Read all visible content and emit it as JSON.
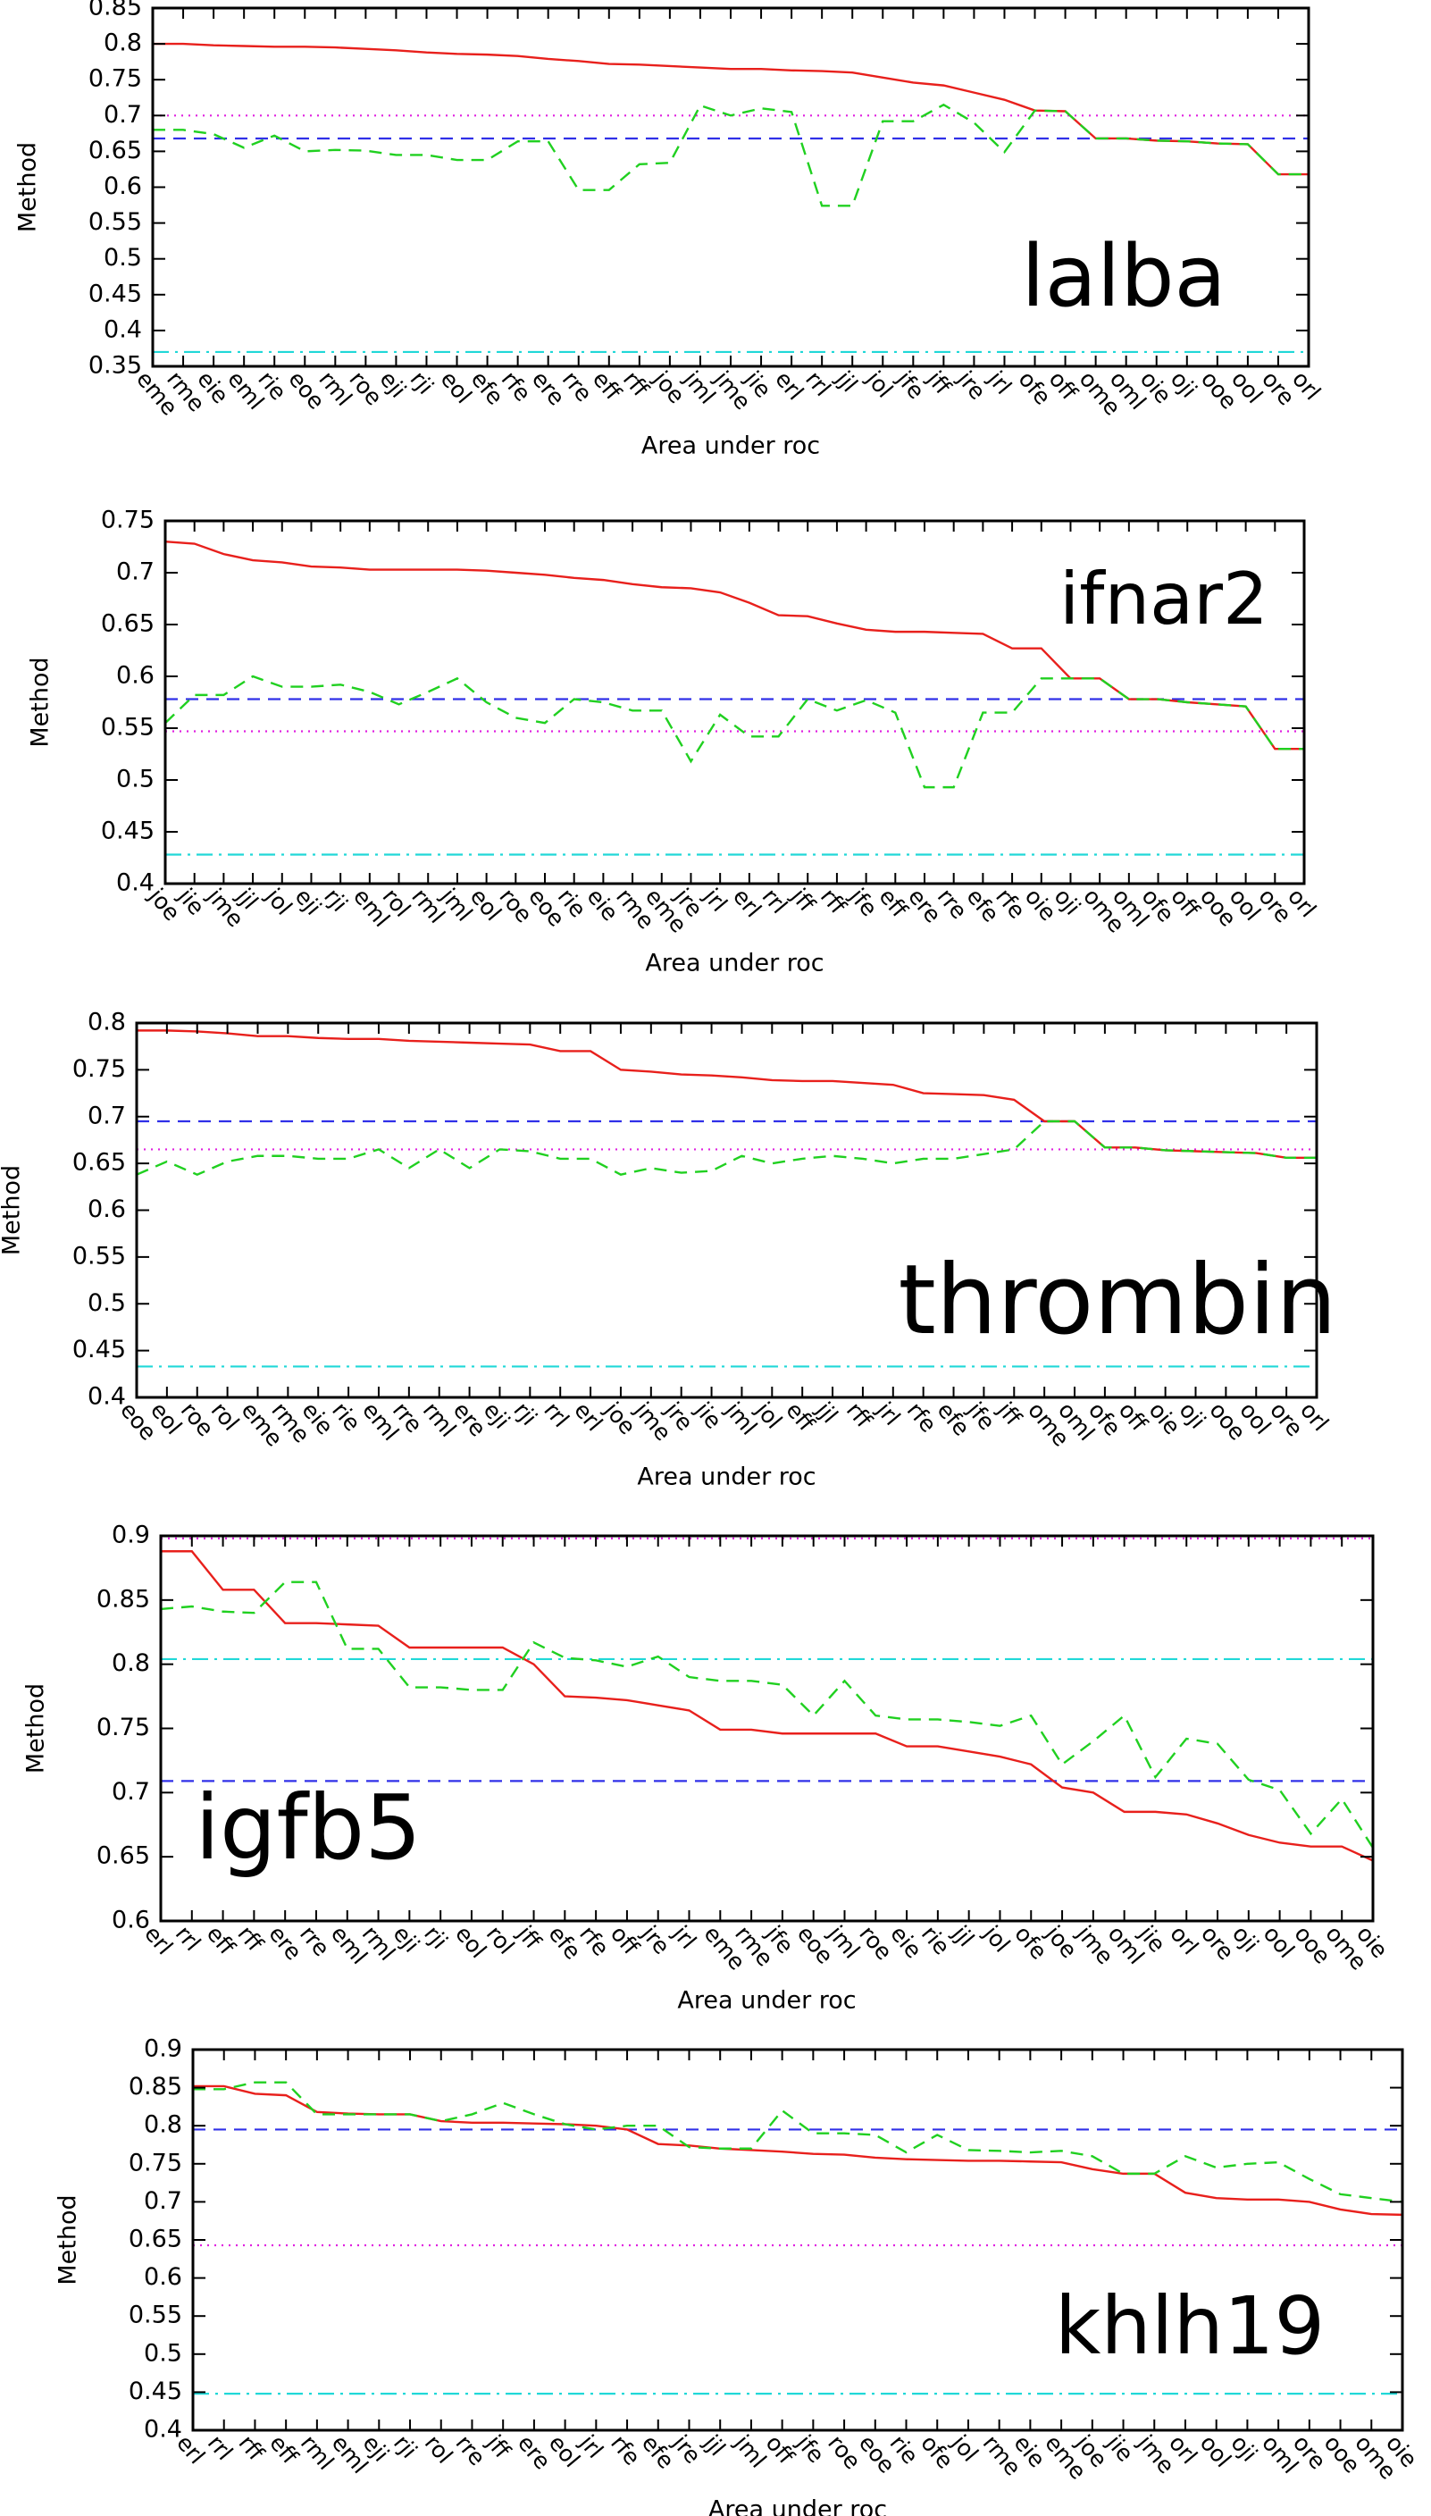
{
  "chart_data": [
    {
      "type": "line",
      "annotation": "lalba",
      "x_label": "Area under roc",
      "y_label": "Method",
      "ylim": [
        0.35,
        0.85
      ],
      "yticks": [
        0.35,
        0.4,
        0.45,
        0.5,
        0.55,
        0.6,
        0.65,
        0.7,
        0.75,
        0.8,
        0.85
      ],
      "grid": false,
      "categories": [
        "eme",
        "rme",
        "eie",
        "eml",
        "rie",
        "eoe",
        "rml",
        "roe",
        "eji",
        "rji",
        "eol",
        "efe",
        "rfe",
        "ere",
        "rre",
        "eff",
        "rff",
        "joe",
        "jml",
        "jme",
        "jie",
        "erl",
        "rrl",
        "jjl",
        "jol",
        "jfe",
        "jff",
        "jre",
        "jrl",
        "ofe",
        "off",
        "ome",
        "oml",
        "oie",
        "oji",
        "ooe",
        "ool",
        "ore",
        "orl"
      ],
      "series": [
        {
          "color": "#e8201c",
          "dash": "solid",
          "values": [
            0.8,
            0.8,
            0.798,
            0.797,
            0.796,
            0.796,
            0.795,
            0.793,
            0.791,
            0.788,
            0.786,
            0.785,
            0.783,
            0.779,
            0.776,
            0.772,
            0.771,
            0.769,
            0.767,
            0.765,
            0.765,
            0.763,
            0.762,
            0.76,
            0.753,
            0.746,
            0.742,
            0.732,
            0.722,
            0.707,
            0.706,
            0.668,
            0.668,
            0.665,
            0.664,
            0.661,
            0.66,
            0.618,
            0.618
          ]
        },
        {
          "color": "#20d020",
          "dash": "dashed",
          "values": [
            0.68,
            0.68,
            0.674,
            0.655,
            0.672,
            0.65,
            0.652,
            0.651,
            0.645,
            0.645,
            0.638,
            0.638,
            0.664,
            0.664,
            0.596,
            0.596,
            0.632,
            0.634,
            0.714,
            0.7,
            0.71,
            0.705,
            0.574,
            0.574,
            0.692,
            0.692,
            0.715,
            0.69,
            0.649,
            0.707,
            0.706,
            0.668,
            0.668,
            0.665,
            0.664,
            0.661,
            0.66,
            0.618,
            0.618
          ]
        }
      ],
      "reference_lines": [
        {
          "value": 0.7,
          "color": "#e020e0",
          "dash": "dotted"
        },
        {
          "value": 0.668,
          "color": "#3030e8",
          "dash": "dashed"
        },
        {
          "value": 0.37,
          "color": "#20d8d8",
          "dash": "dashdot"
        }
      ]
    },
    {
      "type": "line",
      "annotation": "ifnar2",
      "x_label": "Area under roc",
      "y_label": "Method",
      "ylim": [
        0.4,
        0.75
      ],
      "yticks": [
        0.4,
        0.45,
        0.5,
        0.55,
        0.6,
        0.65,
        0.7,
        0.75
      ],
      "grid": false,
      "categories": [
        "joe",
        "jie",
        "jme",
        "jjl",
        "jol",
        "eji",
        "rji",
        "eml",
        "rol",
        "rml",
        "jml",
        "eol",
        "roe",
        "eoe",
        "rie",
        "eie",
        "rme",
        "eme",
        "jre",
        "jrl",
        "erl",
        "rrl",
        "jff",
        "rff",
        "jfe",
        "eff",
        "ere",
        "rre",
        "efe",
        "rfe",
        "oie",
        "oji",
        "ome",
        "oml",
        "ofe",
        "off",
        "ooe",
        "ool",
        "ore",
        "orl"
      ],
      "series": [
        {
          "color": "#e8201c",
          "dash": "solid",
          "values": [
            0.73,
            0.728,
            0.718,
            0.712,
            0.71,
            0.706,
            0.705,
            0.703,
            0.703,
            0.703,
            0.703,
            0.702,
            0.7,
            0.698,
            0.695,
            0.693,
            0.689,
            0.686,
            0.685,
            0.681,
            0.671,
            0.659,
            0.658,
            0.651,
            0.645,
            0.643,
            0.643,
            0.642,
            0.641,
            0.627,
            0.627,
            0.598,
            0.598,
            0.578,
            0.578,
            0.575,
            0.573,
            0.571,
            0.53,
            0.53
          ]
        },
        {
          "color": "#20d020",
          "dash": "dashed",
          "values": [
            0.555,
            0.582,
            0.582,
            0.6,
            0.59,
            0.59,
            0.592,
            0.585,
            0.573,
            0.585,
            0.598,
            0.575,
            0.56,
            0.555,
            0.578,
            0.575,
            0.567,
            0.567,
            0.518,
            0.563,
            0.542,
            0.542,
            0.578,
            0.567,
            0.577,
            0.565,
            0.493,
            0.493,
            0.565,
            0.565,
            0.598,
            0.598,
            0.598,
            0.578,
            0.578,
            0.575,
            0.573,
            0.571,
            0.53,
            0.53
          ]
        }
      ],
      "reference_lines": [
        {
          "value": 0.578,
          "color": "#3030e8",
          "dash": "dashed"
        },
        {
          "value": 0.547,
          "color": "#e020e0",
          "dash": "dotted"
        },
        {
          "value": 0.428,
          "color": "#20d8d8",
          "dash": "dashdot"
        }
      ]
    },
    {
      "type": "line",
      "annotation": "thrombin",
      "x_label": "Area under roc",
      "y_label": "Method",
      "ylim": [
        0.4,
        0.8
      ],
      "yticks": [
        0.4,
        0.45,
        0.5,
        0.55,
        0.6,
        0.65,
        0.7,
        0.75,
        0.8
      ],
      "grid": false,
      "categories": [
        "eoe",
        "eol",
        "roe",
        "rol",
        "eme",
        "rme",
        "eie",
        "rie",
        "eml",
        "rre",
        "rml",
        "ere",
        "eji",
        "rji",
        "rrl",
        "erl",
        "joe",
        "jme",
        "jre",
        "jie",
        "jml",
        "jol",
        "eff",
        "jjl",
        "rff",
        "jrl",
        "rfe",
        "efe",
        "jfe",
        "jff",
        "ome",
        "oml",
        "ofe",
        "off",
        "oie",
        "oji",
        "ooe",
        "ool",
        "ore",
        "orl"
      ],
      "series": [
        {
          "color": "#e8201c",
          "dash": "solid",
          "values": [
            0.792,
            0.792,
            0.791,
            0.789,
            0.786,
            0.786,
            0.784,
            0.783,
            0.783,
            0.781,
            0.78,
            0.779,
            0.778,
            0.777,
            0.77,
            0.77,
            0.75,
            0.748,
            0.745,
            0.744,
            0.742,
            0.739,
            0.738,
            0.738,
            0.736,
            0.734,
            0.725,
            0.724,
            0.723,
            0.718,
            0.695,
            0.695,
            0.667,
            0.667,
            0.664,
            0.663,
            0.662,
            0.661,
            0.656,
            0.656
          ]
        },
        {
          "color": "#20d020",
          "dash": "dashed",
          "values": [
            0.638,
            0.652,
            0.638,
            0.652,
            0.658,
            0.658,
            0.655,
            0.655,
            0.665,
            0.645,
            0.665,
            0.645,
            0.665,
            0.663,
            0.655,
            0.655,
            0.638,
            0.645,
            0.64,
            0.642,
            0.658,
            0.65,
            0.655,
            0.658,
            0.655,
            0.65,
            0.655,
            0.655,
            0.66,
            0.665,
            0.695,
            0.695,
            0.667,
            0.667,
            0.664,
            0.663,
            0.662,
            0.661,
            0.656,
            0.656
          ]
        }
      ],
      "reference_lines": [
        {
          "value": 0.695,
          "color": "#3030e8",
          "dash": "dashed"
        },
        {
          "value": 0.665,
          "color": "#e020e0",
          "dash": "dotted"
        },
        {
          "value": 0.433,
          "color": "#20d8d8",
          "dash": "dashdot"
        }
      ]
    },
    {
      "type": "line",
      "annotation": "igfb5",
      "x_label": "Area under roc",
      "y_label": "Method",
      "ylim": [
        0.6,
        0.9
      ],
      "yticks": [
        0.6,
        0.65,
        0.7,
        0.75,
        0.8,
        0.85,
        0.9
      ],
      "grid": false,
      "categories": [
        "erl",
        "rrl",
        "eff",
        "rff",
        "ere",
        "rre",
        "eml",
        "rml",
        "eji",
        "rji",
        "eol",
        "rol",
        "jff",
        "efe",
        "rfe",
        "off",
        "jre",
        "jrl",
        "eme",
        "rme",
        "jfe",
        "eoe",
        "jml",
        "roe",
        "eie",
        "rie",
        "jjl",
        "jol",
        "ofe",
        "joe",
        "jme",
        "oml",
        "jie",
        "orl",
        "ore",
        "oji",
        "ool",
        "ooe",
        "ome",
        "oie"
      ],
      "series": [
        {
          "color": "#e8201c",
          "dash": "solid",
          "values": [
            0.888,
            0.888,
            0.858,
            0.858,
            0.832,
            0.832,
            0.831,
            0.83,
            0.813,
            0.813,
            0.813,
            0.813,
            0.8,
            0.775,
            0.774,
            0.772,
            0.768,
            0.764,
            0.749,
            0.749,
            0.746,
            0.746,
            0.746,
            0.746,
            0.736,
            0.736,
            0.732,
            0.728,
            0.722,
            0.704,
            0.7,
            0.685,
            0.685,
            0.683,
            0.676,
            0.667,
            0.661,
            0.658,
            0.658,
            0.647
          ]
        },
        {
          "color": "#20d020",
          "dash": "dashed",
          "values": [
            0.843,
            0.845,
            0.841,
            0.84,
            0.864,
            0.864,
            0.812,
            0.812,
            0.782,
            0.782,
            0.78,
            0.78,
            0.817,
            0.805,
            0.803,
            0.798,
            0.806,
            0.79,
            0.787,
            0.787,
            0.784,
            0.76,
            0.787,
            0.76,
            0.757,
            0.757,
            0.755,
            0.752,
            0.76,
            0.722,
            0.74,
            0.76,
            0.712,
            0.742,
            0.738,
            0.71,
            0.702,
            0.668,
            0.695,
            0.657
          ]
        }
      ],
      "reference_lines": [
        {
          "value": 0.898,
          "color": "#e020e0",
          "dash": "dotted"
        },
        {
          "value": 0.804,
          "color": "#20d8d8",
          "dash": "dashdot"
        },
        {
          "value": 0.709,
          "color": "#3030e8",
          "dash": "dashed"
        }
      ]
    },
    {
      "type": "line",
      "annotation": "khlh19",
      "x_label": "Area under roc",
      "y_label": "Method",
      "ylim": [
        0.4,
        0.9
      ],
      "yticks": [
        0.4,
        0.45,
        0.5,
        0.55,
        0.6,
        0.65,
        0.7,
        0.75,
        0.8,
        0.85,
        0.9
      ],
      "grid": false,
      "categories": [
        "erl",
        "rrl",
        "rff",
        "eff",
        "rml",
        "eml",
        "eji",
        "rji",
        "rol",
        "rre",
        "jff",
        "ere",
        "eol",
        "jrl",
        "rfe",
        "efe",
        "jre",
        "jjl",
        "jml",
        "off",
        "jfe",
        "roe",
        "eoe",
        "rie",
        "ofe",
        "jol",
        "rme",
        "eie",
        "eme",
        "joe",
        "jie",
        "jme",
        "orl",
        "ool",
        "oji",
        "oml",
        "ore",
        "ooe",
        "ome",
        "oie"
      ],
      "series": [
        {
          "color": "#e8201c",
          "dash": "solid",
          "values": [
            0.852,
            0.852,
            0.842,
            0.84,
            0.818,
            0.816,
            0.815,
            0.815,
            0.806,
            0.804,
            0.804,
            0.803,
            0.802,
            0.8,
            0.795,
            0.776,
            0.774,
            0.77,
            0.768,
            0.766,
            0.763,
            0.762,
            0.758,
            0.756,
            0.755,
            0.754,
            0.754,
            0.753,
            0.752,
            0.743,
            0.737,
            0.737,
            0.712,
            0.705,
            0.703,
            0.703,
            0.7,
            0.69,
            0.684,
            0.683
          ]
        },
        {
          "color": "#20d020",
          "dash": "dashed",
          "values": [
            0.848,
            0.848,
            0.857,
            0.857,
            0.815,
            0.815,
            0.815,
            0.815,
            0.806,
            0.815,
            0.83,
            0.815,
            0.802,
            0.795,
            0.8,
            0.8,
            0.772,
            0.77,
            0.77,
            0.82,
            0.79,
            0.79,
            0.788,
            0.765,
            0.788,
            0.768,
            0.767,
            0.765,
            0.767,
            0.76,
            0.737,
            0.737,
            0.76,
            0.745,
            0.75,
            0.752,
            0.73,
            0.71,
            0.705,
            0.7
          ]
        }
      ],
      "reference_lines": [
        {
          "value": 0.795,
          "color": "#3030e8",
          "dash": "dashed"
        },
        {
          "value": 0.643,
          "color": "#e020e0",
          "dash": "dotted"
        },
        {
          "value": 0.448,
          "color": "#20d8d8",
          "dash": "dashdot"
        }
      ]
    }
  ]
}
